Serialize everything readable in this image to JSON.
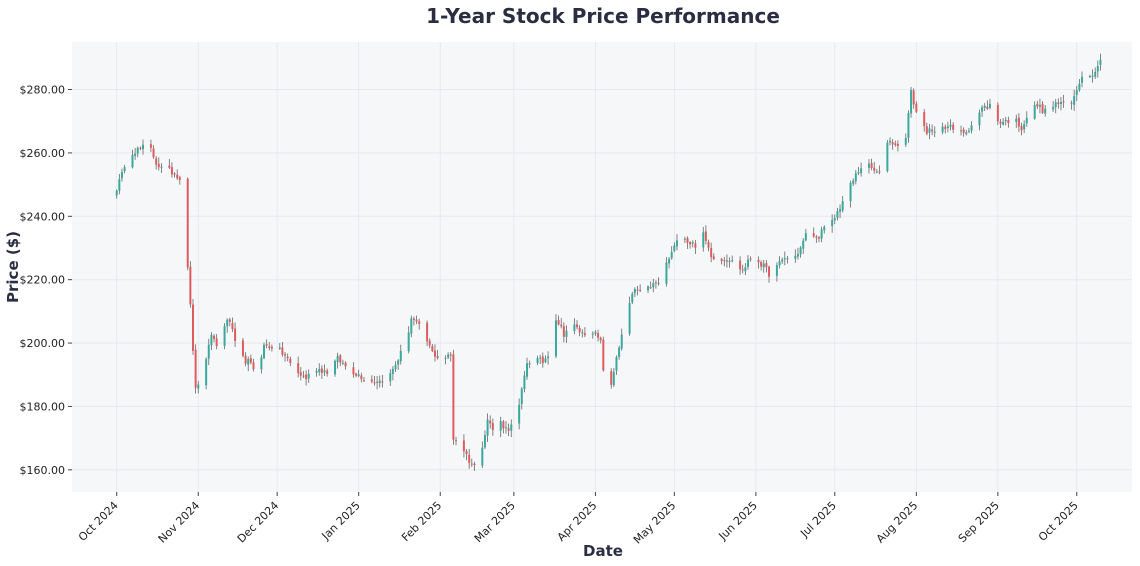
{
  "chart_data": {
    "type": "candlestick",
    "title": "1-Year Stock Price Performance",
    "xlabel": "Date",
    "ylabel": "Price ($)",
    "ylim": [
      153,
      295
    ],
    "x_range": [
      "2024-09-14",
      "2025-10-22"
    ],
    "y_ticks": [
      160,
      180,
      200,
      220,
      240,
      260,
      280
    ],
    "y_tick_labels": [
      "$160.00",
      "$180.00",
      "$200.00",
      "$220.00",
      "$240.00",
      "$260.00",
      "$280.00"
    ],
    "x_ticks": [
      "2024-10-01",
      "2024-11-01",
      "2024-12-01",
      "2025-01-01",
      "2025-02-01",
      "2025-03-01",
      "2025-04-01",
      "2025-05-01",
      "2025-06-01",
      "2025-07-01",
      "2025-08-01",
      "2025-09-01",
      "2025-10-01"
    ],
    "x_tick_labels": [
      "Oct 2024",
      "Nov 2024",
      "Dec 2024",
      "Jan 2025",
      "Feb 2025",
      "Mar 2025",
      "Apr 2025",
      "May 2025",
      "Jun 2025",
      "Jul 2025",
      "Aug 2025",
      "Sep 2025",
      "Oct 2025"
    ],
    "grid": true,
    "up_color": "#3aa89c",
    "down_color": "#e05c5c",
    "wick_color": "#666666",
    "background": "#f5f7f9",
    "key_points": [
      [
        "2024-10-01",
        249
      ],
      [
        "2024-10-03",
        253
      ],
      [
        "2024-10-05",
        260
      ],
      [
        "2024-10-09",
        261
      ],
      [
        "2024-10-12",
        262
      ],
      [
        "2024-10-14",
        261
      ],
      [
        "2024-10-16",
        257
      ],
      [
        "2024-10-18",
        255
      ],
      [
        "2024-10-22",
        254
      ],
      [
        "2024-10-24",
        253
      ],
      [
        "2024-10-26",
        251
      ],
      [
        "2024-10-31",
        185
      ],
      [
        "2024-11-02",
        190
      ],
      [
        "2024-11-04",
        194
      ],
      [
        "2024-11-06",
        203
      ],
      [
        "2024-11-08",
        199
      ],
      [
        "2024-11-11",
        206
      ],
      [
        "2024-11-13",
        207
      ],
      [
        "2024-11-16",
        196
      ],
      [
        "2024-11-20",
        194
      ],
      [
        "2024-11-23",
        191
      ],
      [
        "2024-11-26",
        199
      ],
      [
        "2024-11-30",
        199
      ],
      [
        "2024-12-04",
        196
      ],
      [
        "2024-12-08",
        191
      ],
      [
        "2024-12-12",
        189
      ],
      [
        "2024-12-16",
        192
      ],
      [
        "2024-12-20",
        191
      ],
      [
        "2024-12-24",
        195
      ],
      [
        "2024-12-28",
        192
      ],
      [
        "2025-01-01",
        190
      ],
      [
        "2025-01-05",
        188
      ],
      [
        "2025-01-09",
        188
      ],
      [
        "2025-01-13",
        190
      ],
      [
        "2025-01-16",
        195
      ],
      [
        "2025-01-19",
        200
      ],
      [
        "2025-01-21",
        208
      ],
      [
        "2025-01-25",
        204
      ],
      [
        "2025-01-29",
        197
      ],
      [
        "2025-02-01",
        195
      ],
      [
        "2025-02-05",
        196
      ],
      [
        "2025-02-06",
        170
      ],
      [
        "2025-02-09",
        168
      ],
      [
        "2025-02-12",
        163
      ],
      [
        "2025-02-14",
        161
      ],
      [
        "2025-02-17",
        168
      ],
      [
        "2025-02-19",
        176
      ],
      [
        "2025-02-22",
        171
      ],
      [
        "2025-02-24",
        175
      ],
      [
        "2025-02-26",
        173
      ],
      [
        "2025-03-01",
        174
      ],
      [
        "2025-03-03",
        180
      ],
      [
        "2025-03-06",
        194
      ],
      [
        "2025-03-09",
        195
      ],
      [
        "2025-03-12",
        194
      ],
      [
        "2025-03-15",
        198
      ],
      [
        "2025-03-17",
        208
      ],
      [
        "2025-03-20",
        203
      ],
      [
        "2025-03-23",
        206
      ],
      [
        "2025-03-27",
        203
      ],
      [
        "2025-03-31",
        204
      ],
      [
        "2025-04-03",
        200
      ],
      [
        "2025-04-05",
        184
      ],
      [
        "2025-04-07",
        186
      ],
      [
        "2025-04-09",
        196
      ],
      [
        "2025-04-11",
        202
      ],
      [
        "2025-04-13",
        210
      ],
      [
        "2025-04-16",
        217
      ],
      [
        "2025-04-19",
        215
      ],
      [
        "2025-04-22",
        218
      ],
      [
        "2025-04-25",
        219
      ],
      [
        "2025-04-28",
        225
      ],
      [
        "2025-05-01",
        230
      ],
      [
        "2025-05-03",
        237
      ],
      [
        "2025-05-06",
        232
      ],
      [
        "2025-05-09",
        231
      ],
      [
        "2025-05-12",
        234
      ],
      [
        "2025-05-15",
        228
      ],
      [
        "2025-05-18",
        226
      ],
      [
        "2025-05-21",
        227
      ],
      [
        "2025-05-24",
        225
      ],
      [
        "2025-05-27",
        223
      ],
      [
        "2025-05-31",
        228
      ],
      [
        "2025-06-03",
        225
      ],
      [
        "2025-06-06",
        222
      ],
      [
        "2025-06-09",
        224
      ],
      [
        "2025-06-12",
        227
      ],
      [
        "2025-06-15",
        226
      ],
      [
        "2025-06-18",
        230
      ],
      [
        "2025-06-21",
        236
      ],
      [
        "2025-06-24",
        233
      ],
      [
        "2025-06-27",
        236
      ],
      [
        "2025-06-30",
        238
      ],
      [
        "2025-07-03",
        243
      ],
      [
        "2025-07-06",
        248
      ],
      [
        "2025-07-09",
        253
      ],
      [
        "2025-07-12",
        257
      ],
      [
        "2025-07-15",
        255
      ],
      [
        "2025-07-18",
        253
      ],
      [
        "2025-07-21",
        264
      ],
      [
        "2025-07-24",
        263
      ],
      [
        "2025-07-27",
        259
      ],
      [
        "2025-07-30",
        279
      ],
      [
        "2025-08-02",
        270
      ],
      [
        "2025-08-05",
        267
      ],
      [
        "2025-08-08",
        266
      ],
      [
        "2025-08-11",
        269
      ],
      [
        "2025-08-14",
        268
      ],
      [
        "2025-08-17",
        266
      ],
      [
        "2025-08-20",
        267
      ],
      [
        "2025-08-23",
        270
      ],
      [
        "2025-08-26",
        274
      ],
      [
        "2025-08-29",
        275
      ],
      [
        "2025-09-01",
        270
      ],
      [
        "2025-09-04",
        270
      ],
      [
        "2025-09-07",
        271
      ],
      [
        "2025-09-10",
        268
      ],
      [
        "2025-09-13",
        273
      ],
      [
        "2025-09-16",
        275
      ],
      [
        "2025-09-19",
        273
      ],
      [
        "2025-09-22",
        275
      ],
      [
        "2025-09-25",
        276
      ],
      [
        "2025-09-28",
        273
      ],
      [
        "2025-10-01",
        280
      ],
      [
        "2025-10-03",
        285
      ],
      [
        "2025-10-06",
        284
      ],
      [
        "2025-10-09",
        288
      ],
      [
        "2025-10-10",
        289
      ]
    ]
  }
}
